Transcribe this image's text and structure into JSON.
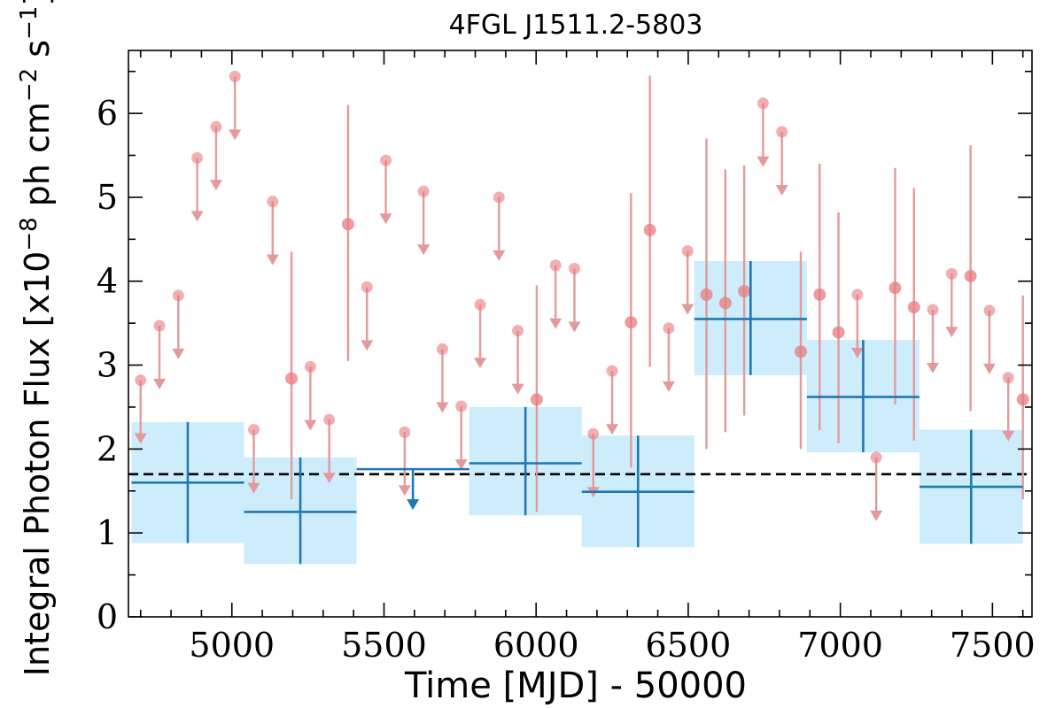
{
  "chart_data": {
    "type": "scatter",
    "title": "4FGL J1511.2-5803",
    "xlabel": "Time [MJD] - 50000",
    "ylabel_parts": [
      "Integral Photon Flux [x10",
      "−8",
      " ph cm",
      "−2",
      " s",
      "−1",
      "]"
    ],
    "xlim": [
      4660,
      7630
    ],
    "ylim": [
      0,
      6.75
    ],
    "xticks": [
      5000,
      5500,
      6000,
      6500,
      7000,
      7500
    ],
    "yticks": [
      0,
      1,
      2,
      3,
      4,
      5,
      6
    ],
    "average_flux": 1.7,
    "colors": {
      "fine": "#e8797d",
      "fine_err": "#e39a9c",
      "coarse": "#1f77b4",
      "band": "#cdedfc",
      "average": "#000000"
    },
    "coarse_bins": [
      {
        "x0": 4670,
        "x1": 5040,
        "y": 1.6,
        "lo": 0.88,
        "hi": 2.32,
        "ul": false
      },
      {
        "x0": 5040,
        "x1": 5410,
        "y": 1.25,
        "lo": 0.63,
        "hi": 1.9,
        "ul": false
      },
      {
        "x0": 5410,
        "x1": 5780,
        "y": 1.76,
        "lo": null,
        "hi": null,
        "ul": true
      },
      {
        "x0": 5780,
        "x1": 6150,
        "y": 1.83,
        "lo": 1.21,
        "hi": 2.5,
        "ul": false
      },
      {
        "x0": 6150,
        "x1": 6520,
        "y": 1.49,
        "lo": 0.83,
        "hi": 2.16,
        "ul": false
      },
      {
        "x0": 6520,
        "x1": 6890,
        "y": 3.55,
        "lo": 2.88,
        "hi": 4.24,
        "ul": false
      },
      {
        "x0": 6890,
        "x1": 7260,
        "y": 2.62,
        "lo": 1.96,
        "hi": 3.3,
        "ul": false
      },
      {
        "x0": 7260,
        "x1": 7600,
        "y": 1.55,
        "lo": 0.87,
        "hi": 2.23,
        "ul": false
      }
    ],
    "fine_bins": [
      {
        "x": 4700,
        "y": 2.82,
        "ul": true
      },
      {
        "x": 4762,
        "y": 3.47,
        "ul": true
      },
      {
        "x": 4824,
        "y": 3.83,
        "ul": true
      },
      {
        "x": 4886,
        "y": 5.47,
        "ul": true
      },
      {
        "x": 4948,
        "y": 5.84,
        "ul": true
      },
      {
        "x": 5010,
        "y": 6.44,
        "ul": true
      },
      {
        "x": 5072,
        "y": 2.23,
        "ul": true
      },
      {
        "x": 5134,
        "y": 4.95,
        "ul": true
      },
      {
        "x": 5196,
        "y": 2.84,
        "ul": false,
        "lo": 1.4,
        "hi": 4.35
      },
      {
        "x": 5258,
        "y": 2.98,
        "ul": true
      },
      {
        "x": 5320,
        "y": 2.35,
        "ul": true
      },
      {
        "x": 5382,
        "y": 4.68,
        "ul": false,
        "lo": 3.05,
        "hi": 6.1
      },
      {
        "x": 5444,
        "y": 3.93,
        "ul": true
      },
      {
        "x": 5506,
        "y": 5.44,
        "ul": true
      },
      {
        "x": 5568,
        "y": 2.2,
        "ul": true
      },
      {
        "x": 5630,
        "y": 5.07,
        "ul": true
      },
      {
        "x": 5692,
        "y": 3.19,
        "ul": true
      },
      {
        "x": 5754,
        "y": 2.51,
        "ul": true
      },
      {
        "x": 5816,
        "y": 3.72,
        "ul": true
      },
      {
        "x": 5878,
        "y": 5.0,
        "ul": true
      },
      {
        "x": 5940,
        "y": 3.41,
        "ul": true
      },
      {
        "x": 6002,
        "y": 2.59,
        "ul": false,
        "lo": 1.25,
        "hi": 3.95
      },
      {
        "x": 6064,
        "y": 4.19,
        "ul": true
      },
      {
        "x": 6126,
        "y": 4.15,
        "ul": true
      },
      {
        "x": 6188,
        "y": 2.18,
        "ul": true
      },
      {
        "x": 6250,
        "y": 2.93,
        "ul": true
      },
      {
        "x": 6312,
        "y": 3.51,
        "ul": false,
        "lo": 1.78,
        "hi": 5.05
      },
      {
        "x": 6374,
        "y": 4.61,
        "ul": false,
        "lo": 2.98,
        "hi": 6.45
      },
      {
        "x": 6436,
        "y": 3.44,
        "ul": true
      },
      {
        "x": 6498,
        "y": 4.36,
        "ul": true
      },
      {
        "x": 6560,
        "y": 3.84,
        "ul": false,
        "lo": 2.0,
        "hi": 5.7
      },
      {
        "x": 6622,
        "y": 3.74,
        "ul": false,
        "lo": 2.2,
        "hi": 5.33
      },
      {
        "x": 6684,
        "y": 3.88,
        "ul": false,
        "lo": 2.4,
        "hi": 5.38
      },
      {
        "x": 6746,
        "y": 6.12,
        "ul": true
      },
      {
        "x": 6808,
        "y": 5.78,
        "ul": true
      },
      {
        "x": 6870,
        "y": 3.16,
        "ul": false,
        "lo": 2.0,
        "hi": 4.35
      },
      {
        "x": 6932,
        "y": 3.84,
        "ul": false,
        "lo": 2.22,
        "hi": 5.4
      },
      {
        "x": 6994,
        "y": 3.39,
        "ul": false,
        "lo": 2.07,
        "hi": 4.82
      },
      {
        "x": 7056,
        "y": 3.84,
        "ul": true
      },
      {
        "x": 7118,
        "y": 1.9,
        "ul": true
      },
      {
        "x": 7180,
        "y": 3.92,
        "ul": false,
        "lo": 2.53,
        "hi": 5.35
      },
      {
        "x": 7242,
        "y": 3.69,
        "ul": false,
        "lo": 2.1,
        "hi": 5.11
      },
      {
        "x": 7304,
        "y": 3.66,
        "ul": true
      },
      {
        "x": 7366,
        "y": 4.09,
        "ul": true
      },
      {
        "x": 7428,
        "y": 4.06,
        "ul": false,
        "lo": 2.45,
        "hi": 5.62
      },
      {
        "x": 7490,
        "y": 3.65,
        "ul": true
      },
      {
        "x": 7552,
        "y": 2.85,
        "ul": true
      },
      {
        "x": 7600,
        "y": 2.59,
        "ul": false,
        "lo": 1.4,
        "hi": 3.83
      }
    ]
  }
}
